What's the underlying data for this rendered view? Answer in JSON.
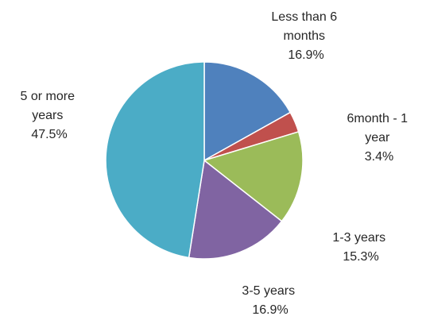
{
  "chart_data": {
    "type": "pie",
    "start_angle_deg": 0,
    "direction": "clockwise",
    "slices": [
      {
        "label_lines": [
          "Less than 6",
          "months"
        ],
        "value": 16.9,
        "value_label": "16.9%",
        "color": "#4F81BD"
      },
      {
        "label_lines": [
          "6month - 1",
          "year"
        ],
        "value": 3.4,
        "value_label": "3.4%",
        "color": "#C0504D"
      },
      {
        "label_lines": [
          "1-3 years"
        ],
        "value": 15.3,
        "value_label": "15.3%",
        "color": "#9BBB59"
      },
      {
        "label_lines": [
          "3-5 years"
        ],
        "value": 16.9,
        "value_label": "16.9%",
        "color": "#8064A2"
      },
      {
        "label_lines": [
          "5 or more",
          "years"
        ],
        "value": 47.5,
        "value_label": "47.5%",
        "color": "#4BACC6"
      }
    ],
    "border_color": "#ffffff"
  }
}
